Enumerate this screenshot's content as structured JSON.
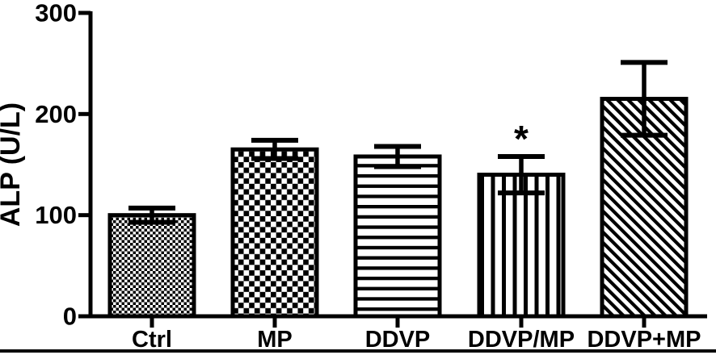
{
  "figure": {
    "background": "#ffffff",
    "ink_color": "#000000",
    "has_bottom_rule": true
  },
  "chart_data": {
    "type": "bar",
    "title": "",
    "xlabel": "",
    "ylabel": "ALP (U/L)",
    "ylim": [
      0,
      300
    ],
    "yticks": [
      0,
      100,
      200,
      300
    ],
    "grid": false,
    "legend_position": "none",
    "categories": [
      "Ctrl",
      "MP",
      "DDVP",
      "DDVP/MP",
      "DDVP+MP"
    ],
    "values": [
      100,
      165,
      158,
      140,
      215
    ],
    "error_bars": [
      7,
      9,
      10,
      18,
      36
    ],
    "error_bar_style": "mean plus/minus SD with caps",
    "significance_labels": [
      "",
      "",
      "",
      "*",
      ""
    ],
    "bar_patterns": [
      "small-checkerboard",
      "large-checkerboard",
      "horizontal-lines",
      "vertical-lines",
      "diagonal-lines"
    ],
    "bar_fill_foreground": "#000000",
    "bar_fill_background": "#ffffff",
    "bar_border_color": "#000000"
  }
}
